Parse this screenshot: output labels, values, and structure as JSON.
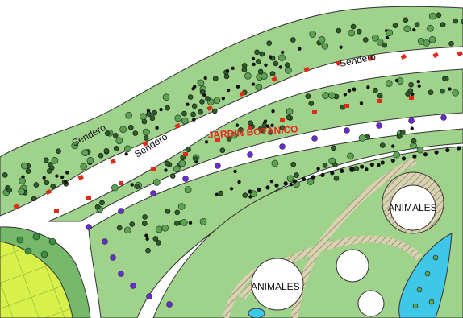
{
  "map": {
    "labels": {
      "path_upper": "Sendero",
      "path_left": "Sendero",
      "path_middle": "Sendero",
      "garden": "JARDIN BOTÁNICO",
      "animals_1": "ANIMALES",
      "animals_2": "ANIMALES"
    },
    "colors": {
      "green": "#9fd28b",
      "green_dark": "#76b96a",
      "path": "#ffffff",
      "outline": "#333333",
      "garden_label": "#e8261b",
      "red_plant": "#e02b1b",
      "purple_plant": "#6a2ad6",
      "black_dot": "#111111",
      "water": "#3fc7ea",
      "yellow_field": "#d8f04a",
      "trail": "#c9c2a2"
    },
    "icons": [
      "tree-icon",
      "shrub-icon",
      "flower-icon",
      "hedge-dot-icon"
    ]
  }
}
